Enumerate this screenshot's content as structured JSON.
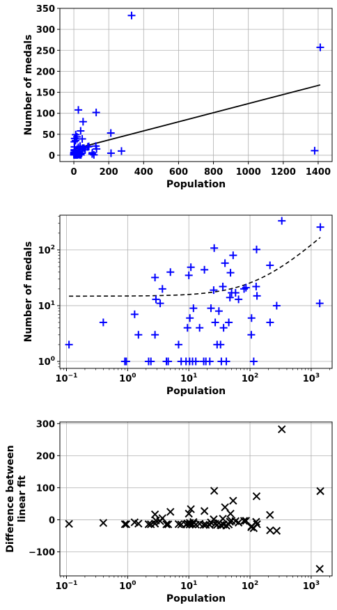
{
  "chart_data": [
    {
      "type": "scatter",
      "xlabel": "Population",
      "ylabel": "Number of medals",
      "xscale": "linear",
      "yscale": "linear",
      "xlim": [
        -80,
        1480
      ],
      "ylim": [
        -15,
        350
      ],
      "xticks": [
        0,
        200,
        400,
        600,
        800,
        1000,
        1200,
        1400
      ],
      "xtick_labels": [
        "0",
        "200",
        "400",
        "600",
        "800",
        "1000",
        "1200",
        "1400"
      ],
      "yticks": [
        0,
        50,
        100,
        150,
        200,
        250,
        300,
        350
      ],
      "ytick_labels": [
        "0",
        "50",
        "100",
        "150",
        "200",
        "250",
        "300",
        "350"
      ],
      "grid": true,
      "marker": "plus",
      "marker_color": "#0000ff",
      "line_color": "#000000",
      "points": [
        [
          0.11,
          2
        ],
        [
          0.4,
          5
        ],
        [
          0.9,
          1
        ],
        [
          0.95,
          1
        ],
        [
          1.3,
          7
        ],
        [
          1.5,
          3
        ],
        [
          2.2,
          1
        ],
        [
          2.4,
          1
        ],
        [
          2.8,
          3
        ],
        [
          2.8,
          32
        ],
        [
          2.9,
          13
        ],
        [
          3.4,
          11
        ],
        [
          3.7,
          20
        ],
        [
          4.3,
          1
        ],
        [
          4.6,
          1
        ],
        [
          5,
          40
        ],
        [
          6.8,
          2
        ],
        [
          7.5,
          1
        ],
        [
          9.0,
          1
        ],
        [
          9.5,
          4
        ],
        [
          10,
          35
        ],
        [
          10.3,
          1
        ],
        [
          10.4,
          6
        ],
        [
          10.8,
          49
        ],
        [
          11.5,
          1
        ],
        [
          11.9,
          9
        ],
        [
          13,
          1
        ],
        [
          15,
          4
        ],
        [
          17.5,
          1
        ],
        [
          18,
          44
        ],
        [
          19,
          1
        ],
        [
          22,
          1
        ],
        [
          23,
          9
        ],
        [
          25.5,
          19
        ],
        [
          26,
          108
        ],
        [
          27,
          5
        ],
        [
          29,
          2
        ],
        [
          31,
          8
        ],
        [
          33,
          2
        ],
        [
          34,
          1
        ],
        [
          36,
          22
        ],
        [
          37,
          4
        ],
        [
          39,
          58
        ],
        [
          41,
          1
        ],
        [
          45,
          5
        ],
        [
          47,
          14
        ],
        [
          48,
          39
        ],
        [
          50,
          17
        ],
        [
          53,
          80
        ],
        [
          58,
          17
        ],
        [
          65,
          13
        ],
        [
          80,
          20
        ],
        [
          86,
          21
        ],
        [
          105,
          3
        ],
        [
          106,
          6
        ],
        [
          115,
          1
        ],
        [
          126,
          22
        ],
        [
          128,
          102
        ],
        [
          130,
          15
        ],
        [
          213,
          5
        ],
        [
          212,
          53
        ],
        [
          273,
          10
        ],
        [
          331,
          333
        ],
        [
          1380,
          11
        ],
        [
          1412,
          257
        ]
      ],
      "fit_line": {
        "x": [
          0.1,
          1412
        ],
        "y": [
          14.8,
          167.6
        ]
      }
    },
    {
      "type": "scatter",
      "xlabel": "Population",
      "ylabel": "Number of medals",
      "xscale": "log",
      "yscale": "log",
      "xlim": [
        0.078,
        2200
      ],
      "ylim": [
        0.75,
        420
      ],
      "xticks": [
        0.1,
        1,
        10,
        100,
        1000
      ],
      "xtick_labels": [
        [
          "10",
          "−1"
        ],
        [
          "10",
          "0"
        ],
        [
          "10",
          "1"
        ],
        [
          "10",
          "2"
        ],
        [
          "10",
          "3"
        ]
      ],
      "yticks": [
        1,
        10,
        100
      ],
      "ytick_labels": [
        [
          "10",
          "0"
        ],
        [
          "10",
          "1"
        ],
        [
          "10",
          "2"
        ]
      ],
      "grid": true,
      "marker": "plus",
      "marker_color": "#0000ff",
      "line_color": "#000000",
      "line_style": "dashed",
      "fit_curve": {
        "slope": 0.1082,
        "intercept": 14.8
      }
    },
    {
      "type": "scatter",
      "xlabel": "Population",
      "ylabel": [
        "Difference between",
        "linear fit"
      ],
      "xscale": "log",
      "yscale": "linear",
      "xlim": [
        0.078,
        2200
      ],
      "ylim": [
        -175,
        305
      ],
      "xticks": [
        0.1,
        1,
        10,
        100,
        1000
      ],
      "xtick_labels": [
        [
          "10",
          "−1"
        ],
        [
          "10",
          "0"
        ],
        [
          "10",
          "1"
        ],
        [
          "10",
          "2"
        ],
        [
          "10",
          "3"
        ]
      ],
      "yticks": [
        -100,
        0,
        100,
        200,
        300
      ],
      "ytick_labels": [
        "−100",
        "0",
        "100",
        "200",
        "300"
      ],
      "grid": true,
      "marker": "x",
      "marker_color": "#000000",
      "residuals_of": "points of chart 1 minus fit_curve"
    }
  ]
}
